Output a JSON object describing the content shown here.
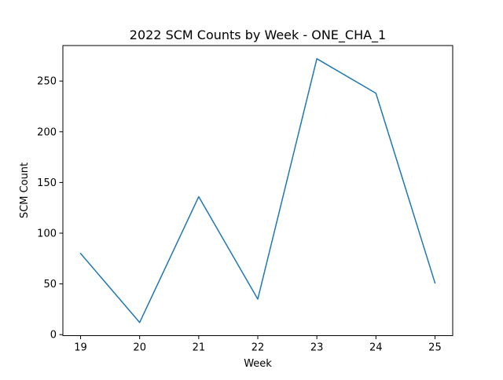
{
  "chart_data": {
    "type": "line",
    "title": "2022 SCM Counts by Week - ONE_CHA_1",
    "xlabel": "Week",
    "ylabel": "SCM Count",
    "x": [
      19,
      20,
      21,
      22,
      23,
      24,
      25
    ],
    "series": [
      {
        "values": [
          80,
          12,
          136,
          35,
          272,
          238,
          51
        ],
        "color": "#1f77b4"
      }
    ],
    "xlim": [
      18.7,
      25.3
    ],
    "ylim": [
      -1,
      285
    ],
    "xticks": [
      19,
      20,
      21,
      22,
      23,
      24,
      25
    ],
    "yticks": [
      0,
      50,
      100,
      150,
      200,
      250
    ],
    "grid": false,
    "legend": "none"
  }
}
